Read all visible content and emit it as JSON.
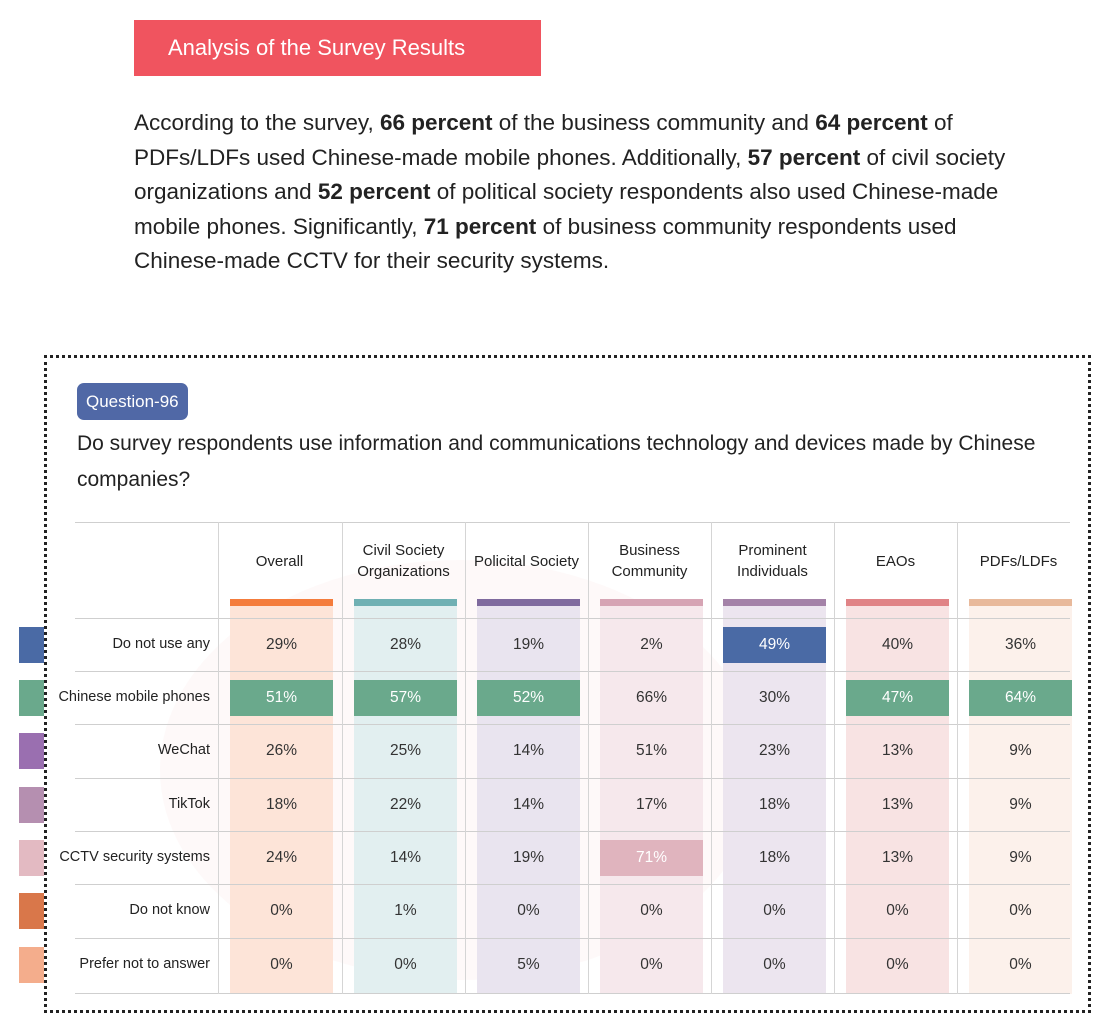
{
  "header": {
    "title": "Analysis of the Survey Results"
  },
  "paragraph": [
    {
      "t": "According to the survey, "
    },
    {
      "b": "66 percent"
    },
    {
      "t": " of the business community and "
    },
    {
      "b": "64 percent"
    },
    {
      "t": " of PDFs/LDFs used Chinese-made mobile phones. Additionally, "
    },
    {
      "b": "57 percent"
    },
    {
      "t": " of civil society organizations and "
    },
    {
      "b": "52 percent"
    },
    {
      "t": " of political society respondents also used Chinese-made mobile phones. Significantly, "
    },
    {
      "b": "71 percent"
    },
    {
      "t": " of business community respondents used Chinese-made CCTV for their security systems."
    }
  ],
  "question": {
    "badge": "Question-96",
    "text": "Do survey respondents use information and communications technology and devices made by Chinese companies?"
  },
  "table": {
    "columns": [
      {
        "label": "Overall",
        "accent": "#f47c3c",
        "bg": "#fde4d8"
      },
      {
        "label": "Civil Society Organizations",
        "accent": "#6fb0b3",
        "bg": "#e2eff0"
      },
      {
        "label": "Policital Society",
        "accent": "#7f6a9e",
        "bg": "#e9e4ef"
      },
      {
        "label": "Business Community",
        "accent": "#d6a4b4",
        "bg": "#f6e8ec"
      },
      {
        "label": "Prominent Individuals",
        "accent": "#a482a8",
        "bg": "#ece5ef"
      },
      {
        "label": "EAOs",
        "accent": "#e08386",
        "bg": "#f8e3e3"
      },
      {
        "label": "PDFs/LDFs",
        "accent": "#e8b99b",
        "bg": "#fcf1eb"
      }
    ],
    "rows": [
      {
        "label": "Do not use any",
        "color": "#4a6aa5",
        "values": [
          "29%",
          "28%",
          "19%",
          "2%",
          "49%",
          "40%",
          "36%"
        ],
        "highlight": [
          4
        ]
      },
      {
        "label": "Chinese mobile phones",
        "color": "#6aa98c",
        "values": [
          "51%",
          "57%",
          "52%",
          "66%",
          "30%",
          "47%",
          "64%"
        ],
        "highlight": [
          0,
          1,
          2,
          5,
          6
        ]
      },
      {
        "label": "WeChat",
        "color": "#9a6fb0",
        "values": [
          "26%",
          "25%",
          "14%",
          "51%",
          "23%",
          "13%",
          "9%"
        ],
        "highlight": []
      },
      {
        "label": "TikTok",
        "color": "#b58fb0",
        "values": [
          "18%",
          "22%",
          "14%",
          "17%",
          "18%",
          "13%",
          "9%"
        ],
        "highlight": []
      },
      {
        "label": "CCTV security systems",
        "color": "#e3bac2",
        "values": [
          "24%",
          "14%",
          "19%",
          "71%",
          "18%",
          "13%",
          "9%"
        ],
        "highlight": [
          3
        ]
      },
      {
        "label": "Do not know",
        "color": "#d9774a",
        "values": [
          "0%",
          "1%",
          "0%",
          "0%",
          "0%",
          "0%",
          "0%"
        ],
        "highlight": []
      },
      {
        "label": "Prefer not to answer",
        "color": "#f4ad8c",
        "values": [
          "0%",
          "0%",
          "5%",
          "0%",
          "0%",
          "0%",
          "0%"
        ],
        "highlight": []
      }
    ],
    "highlight_colors": {
      "0": "#4a6aa5",
      "1": "#6aa98c",
      "4": "#e0b4be"
    }
  }
}
